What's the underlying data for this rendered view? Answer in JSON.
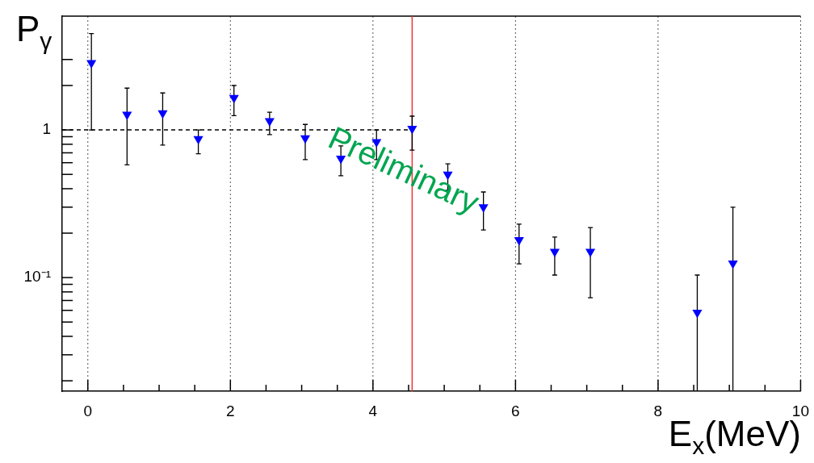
{
  "chart_data": {
    "type": "scatter",
    "xlabel": "E$_{x}$(MeV)",
    "ylabel": "P$_{γ}$",
    "xlim": [
      -0.36,
      10
    ],
    "xticks": [
      0,
      {
        "value": 0.5,
        "label": null
      },
      {
        "value": 1,
        "label": null
      },
      {
        "value": 1.5,
        "label": null
      },
      2,
      {
        "value": 2.5,
        "label": null
      },
      {
        "value": 3,
        "label": null
      },
      {
        "value": 3.5,
        "label": null
      },
      4,
      {
        "value": 4.5,
        "label": null
      },
      {
        "value": 5,
        "label": null
      },
      {
        "value": 5.5,
        "label": null
      },
      6,
      {
        "value": 6.5,
        "label": null
      },
      {
        "value": 7,
        "label": null
      },
      {
        "value": 7.5,
        "label": null
      },
      8,
      {
        "value": 8.5,
        "label": null
      },
      {
        "value": 9,
        "label": null
      },
      {
        "value": 9.5,
        "label": null
      },
      10
    ],
    "ylim": [
      0.017,
      5.9
    ],
    "yticks": [
      {
        "value": 0.02,
        "label": null
      },
      {
        "value": 0.03,
        "label": null
      },
      {
        "value": 0.04,
        "label": null
      },
      {
        "value": 0.05,
        "label": null
      },
      {
        "value": 0.06,
        "label": null
      },
      {
        "value": 0.07,
        "label": null
      },
      {
        "value": 0.08,
        "label": null
      },
      {
        "value": 0.09,
        "label": null
      },
      {
        "value": 0.1,
        "label": "10⁻¹"
      },
      {
        "value": 0.2,
        "label": null
      },
      {
        "value": 0.3,
        "label": null
      },
      {
        "value": 0.4,
        "label": null
      },
      {
        "value": 0.5,
        "label": null
      },
      {
        "value": 0.6,
        "label": null
      },
      {
        "value": 0.7,
        "label": null
      },
      {
        "value": 0.8,
        "label": null
      },
      {
        "value": 0.9,
        "label": null
      },
      1,
      {
        "value": 2,
        "label": null
      },
      {
        "value": 3,
        "label": null
      }
    ],
    "log": "y",
    "grid": "x",
    "marker": "triangle",
    "series": [
      {
        "color": "#0000ff",
        "x": [
          0.05,
          0.55,
          1.05,
          1.55,
          2.05,
          2.55,
          3.05,
          3.55,
          4.05,
          4.55,
          5.05,
          5.55,
          6.05,
          6.55,
          7.05,
          8.55,
          9.05
        ],
        "values": [
          2.84,
          1.27,
          1.3,
          0.87,
          1.65,
          1.15,
          0.88,
          0.64,
          0.83,
          1.02,
          0.5,
          0.3,
          0.18,
          0.15,
          0.15,
          0.058,
          0.125
        ],
        "errors": [
          [
            1.0,
            4.5
          ],
          [
            0.58,
            1.92
          ],
          [
            0.79,
            1.78
          ],
          [
            0.69,
            1.0
          ],
          [
            1.25,
            2.0
          ],
          [
            0.93,
            1.32
          ],
          [
            0.63,
            1.09
          ],
          [
            0.49,
            0.78
          ],
          [
            0.63,
            1.0
          ],
          [
            0.73,
            1.24
          ],
          [
            0.39,
            0.59
          ],
          [
            0.21,
            0.38
          ],
          [
            0.124,
            0.23
          ],
          [
            0.104,
            0.188
          ],
          [
            0.073,
            0.218
          ],
          [
            0.017,
            0.104
          ],
          [
            0.017,
            0.3
          ]
        ]
      },
      {
        "type": "line",
        "color": "#000000",
        "line_style": "dashed",
        "marker": "none",
        "x": [
          -0.36,
          4.55
        ],
        "values": [
          1,
          1
        ]
      }
    ],
    "ref_lines": [
      {
        "axis": "x",
        "value": 4.55,
        "color": "#ee3333",
        "line_style": "solid"
      }
    ],
    "annotations": [
      "Preliminary"
    ]
  }
}
